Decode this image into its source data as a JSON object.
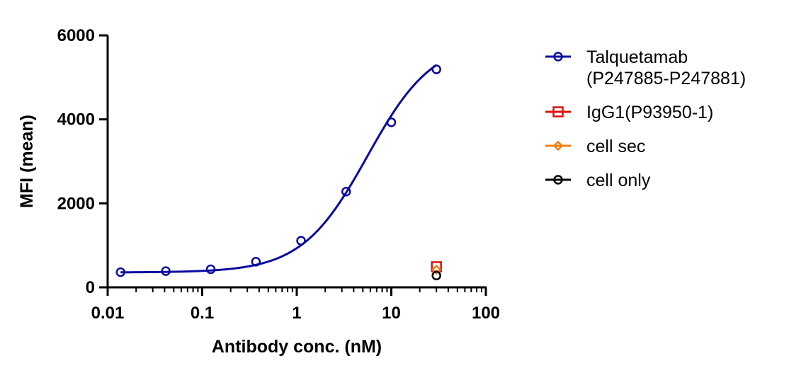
{
  "chart_data": {
    "type": "scatter",
    "title": "",
    "xlabel": "Antibody conc. (nM)",
    "ylabel": "MFI (mean)",
    "xscale": "log",
    "xlim": [
      0.01,
      100
    ],
    "ylim": [
      0,
      6000
    ],
    "x_ticks": [
      "0.01",
      "0.1",
      "1",
      "10",
      "100"
    ],
    "y_ticks": [
      "0",
      "2000",
      "4000",
      "6000"
    ],
    "grid": false,
    "legend_position": "right",
    "series": [
      {
        "name": "Talquetamab",
        "name_line2": "(P247885-P247881)",
        "color": "#0A0AA0",
        "marker": "circle",
        "fit_curve": true,
        "x": [
          0.0137,
          0.0412,
          0.123,
          0.37,
          1.11,
          3.33,
          10,
          30
        ],
        "y": [
          360,
          385,
          430,
          610,
          1110,
          2280,
          3930,
          5190
        ]
      },
      {
        "name": "IgG1(P93950-1)",
        "color": "#E01010",
        "marker": "square",
        "fit_curve": false,
        "x": [
          30
        ],
        "y": [
          490
        ]
      },
      {
        "name": "cell sec",
        "color": "#F08010",
        "marker": "diamond",
        "fit_curve": false,
        "x": [
          30
        ],
        "y": [
          420
        ]
      },
      {
        "name": "cell only",
        "color": "#000000",
        "marker": "circle",
        "fit_curve": false,
        "x": [
          30
        ],
        "y": [
          280
        ]
      }
    ],
    "fit": {
      "bottom": 355,
      "top": 5900,
      "ec50": 5.6,
      "hill": 1.25
    }
  }
}
